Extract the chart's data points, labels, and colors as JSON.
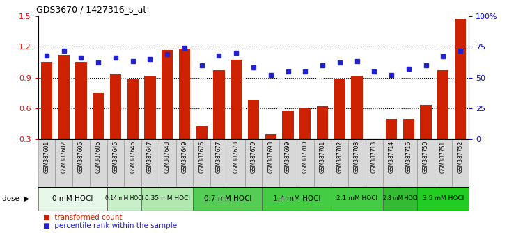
{
  "title": "GDS3670 / 1427316_s_at",
  "samples": [
    "GSM387601",
    "GSM387602",
    "GSM387605",
    "GSM387606",
    "GSM387645",
    "GSM387646",
    "GSM387647",
    "GSM387648",
    "GSM387649",
    "GSM387676",
    "GSM387677",
    "GSM387678",
    "GSM387679",
    "GSM387698",
    "GSM387699",
    "GSM387700",
    "GSM387701",
    "GSM387702",
    "GSM387703",
    "GSM387713",
    "GSM387714",
    "GSM387716",
    "GSM387750",
    "GSM387751",
    "GSM387752"
  ],
  "bar_values": [
    1.05,
    1.12,
    1.05,
    0.75,
    0.93,
    0.88,
    0.92,
    1.17,
    1.18,
    0.42,
    0.97,
    1.07,
    0.68,
    0.35,
    0.57,
    0.6,
    0.62,
    0.88,
    0.92,
    0.28,
    0.5,
    0.5,
    0.63,
    0.97,
    1.47
  ],
  "dot_values": [
    68,
    72,
    66,
    62,
    66,
    63,
    65,
    69,
    74,
    60,
    68,
    70,
    58,
    52,
    55,
    55,
    60,
    62,
    63,
    55,
    52,
    57,
    60,
    67,
    72
  ],
  "dose_groups": [
    {
      "label": "0 mM HOCl",
      "start": 0,
      "end": 4,
      "color": "#e8f8e8"
    },
    {
      "label": "0.14 mM HOCl",
      "start": 4,
      "end": 6,
      "color": "#c8f0c8"
    },
    {
      "label": "0.35 mM HOCl",
      "start": 6,
      "end": 9,
      "color": "#b0e8b0"
    },
    {
      "label": "0.7 mM HOCl",
      "start": 9,
      "end": 13,
      "color": "#55cc55"
    },
    {
      "label": "1.4 mM HOCl",
      "start": 13,
      "end": 17,
      "color": "#44cc44"
    },
    {
      "label": "2.1 mM HOCl",
      "start": 17,
      "end": 20,
      "color": "#44cc44"
    },
    {
      "label": "2.8 mM HOCl",
      "start": 20,
      "end": 22,
      "color": "#33bb33"
    },
    {
      "label": "3.5 mM HOCl",
      "start": 22,
      "end": 25,
      "color": "#22cc22"
    }
  ],
  "bar_color": "#cc2200",
  "dot_color": "#2222cc",
  "ylim_left": [
    0.3,
    1.5
  ],
  "ylim_right": [
    0,
    100
  ],
  "yticks_left": [
    0.3,
    0.6,
    0.9,
    1.2,
    1.5
  ],
  "yticks_right": [
    0,
    25,
    50,
    75,
    100
  ],
  "ytick_right_labels": [
    "0",
    "25",
    "50",
    "75",
    "100%"
  ],
  "dotted_lines": [
    0.6,
    0.9,
    1.2
  ],
  "bg_color": "#ffffff",
  "plot_bg": "#ffffff",
  "label_bg": "#d8d8d8"
}
